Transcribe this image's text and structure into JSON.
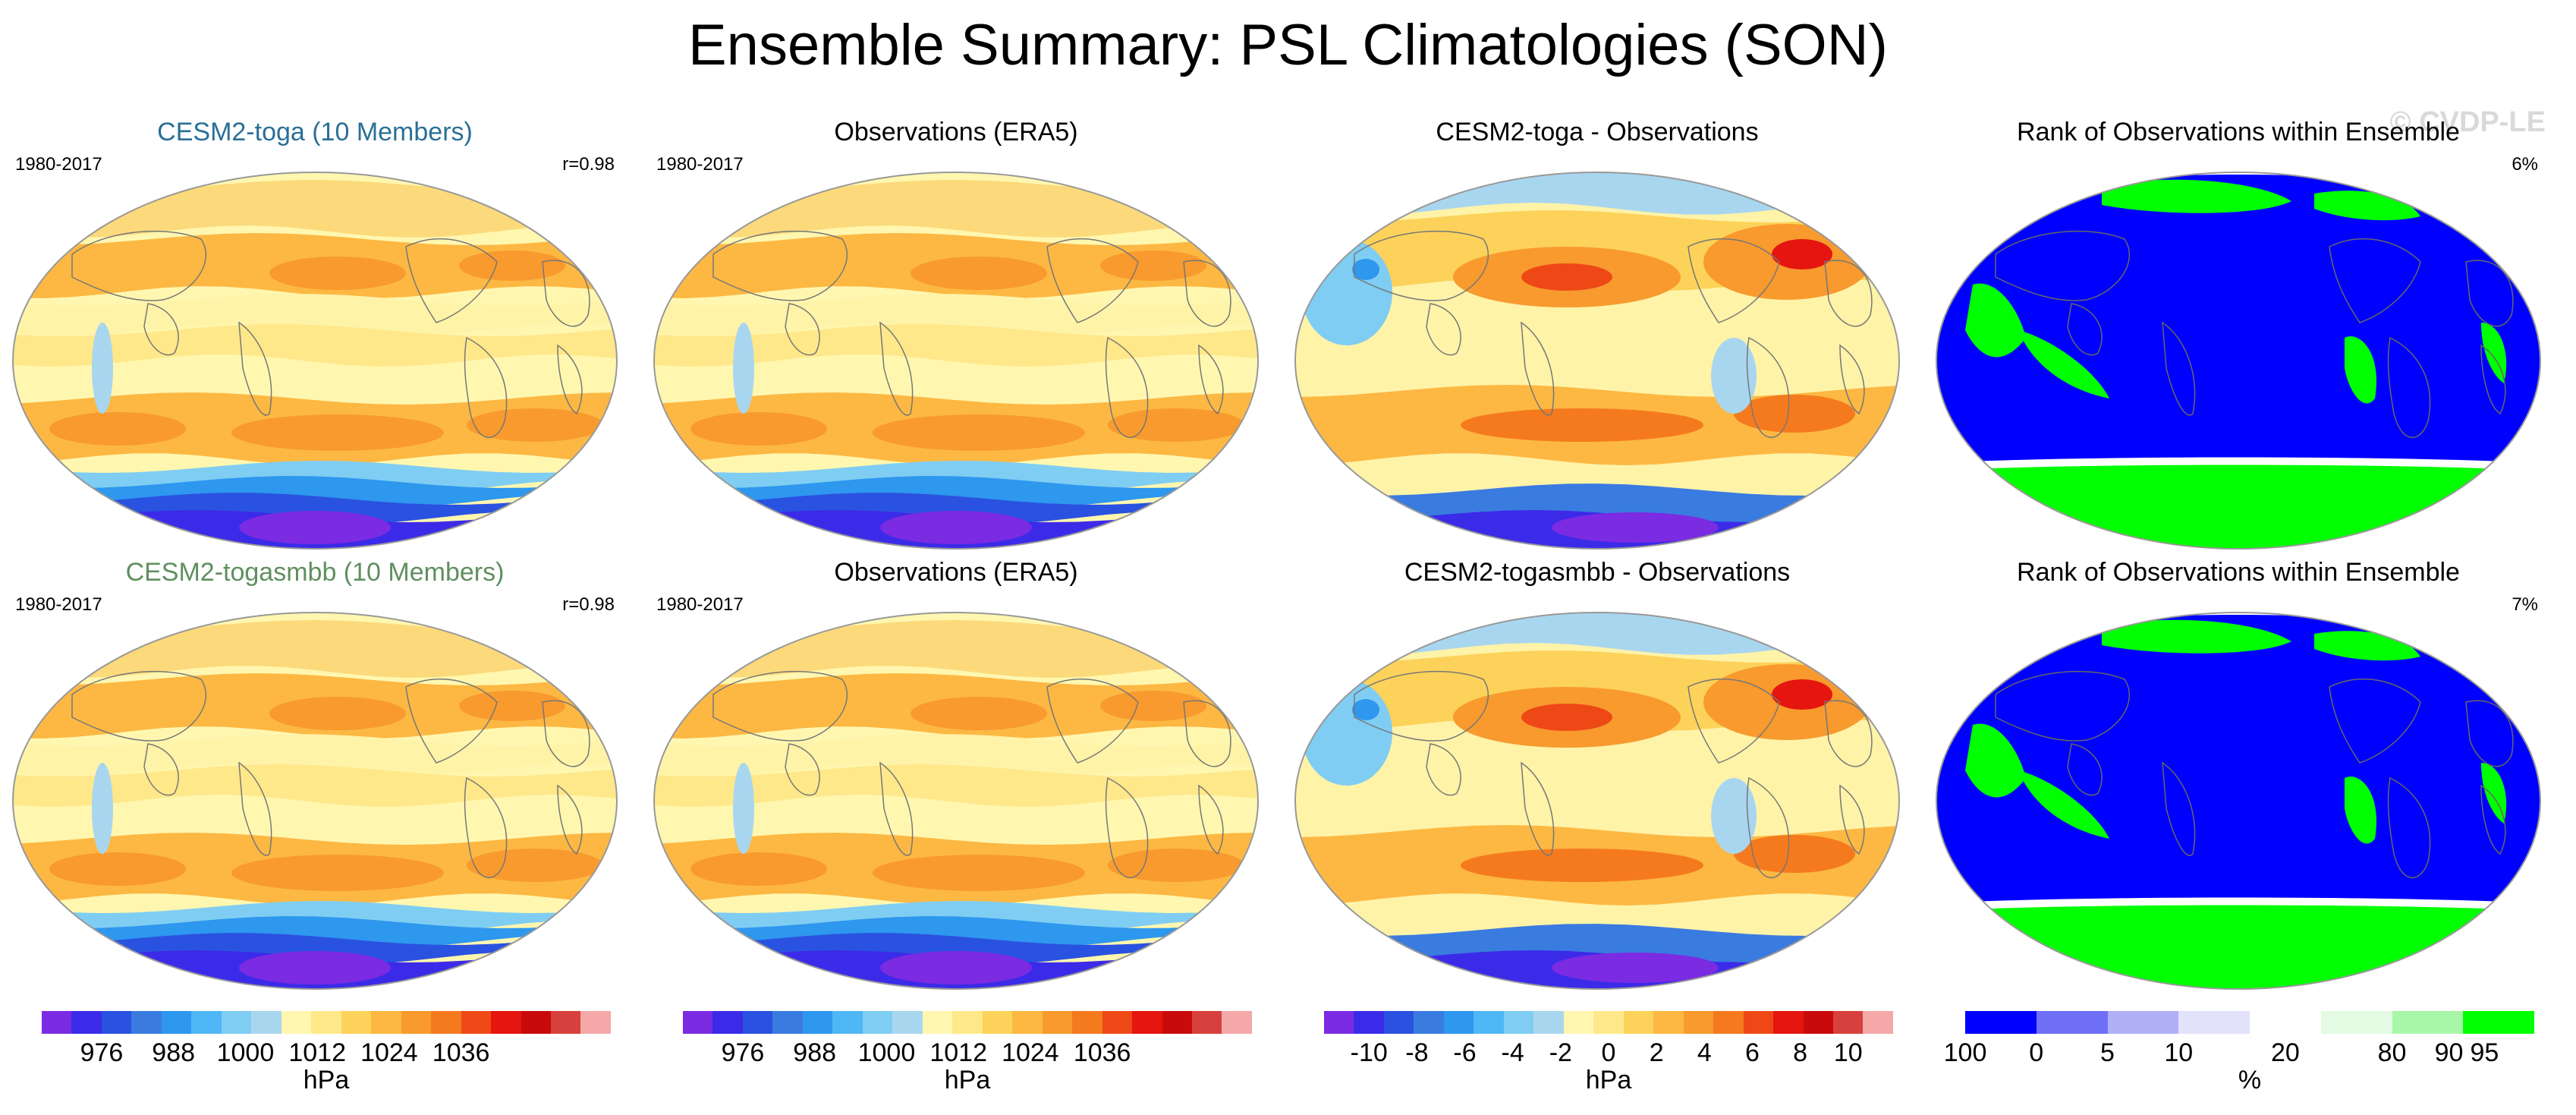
{
  "title": "Ensemble Summary: PSL Climatologies (SON)",
  "watermark": "© CVDP-LE",
  "panels": [
    {
      "title": "CESM2-toga (10 Members)",
      "title_color": "#2a6f97",
      "left": "1980-2017",
      "right": "r=0.98",
      "type": "psl",
      "style": "model1"
    },
    {
      "title": "Observations (ERA5)",
      "title_color": "#000000",
      "left": "1980-2017",
      "right": "",
      "type": "psl",
      "style": "obs1"
    },
    {
      "title": "CESM2-toga - Observations",
      "title_color": "#000000",
      "left": "",
      "right": "",
      "type": "diff",
      "style": "diff1"
    },
    {
      "title": "Rank of Observations within Ensemble",
      "title_color": "#000000",
      "left": "",
      "right": "6%",
      "type": "rank",
      "style": "rank1"
    },
    {
      "title": "CESM2-togasmbb (10 Members)",
      "title_color": "#5f8f5f",
      "left": "1980-2017",
      "right": "r=0.98",
      "type": "psl",
      "style": "model2"
    },
    {
      "title": "Observations (ERA5)",
      "title_color": "#000000",
      "left": "1980-2017",
      "right": "",
      "type": "psl",
      "style": "obs2"
    },
    {
      "title": "CESM2-togasmbb - Observations",
      "title_color": "#000000",
      "left": "",
      "right": "",
      "type": "diff",
      "style": "diff2"
    },
    {
      "title": "Rank of Observations within Ensemble",
      "title_color": "#000000",
      "left": "",
      "right": "7%",
      "type": "rank",
      "style": "rank2"
    }
  ],
  "chart_data": [
    {
      "type": "heatmap",
      "name": "psl-colorbar-1",
      "unit": "hPa",
      "tick_labels": [
        "976",
        "988",
        "1000",
        "1012",
        "1024",
        "1036"
      ],
      "colors": [
        "#7b2be2",
        "#3b2be8",
        "#2a52e0",
        "#3a7be0",
        "#2e97ee",
        "#4fb7f5",
        "#7fcdf2",
        "#a9d6ef",
        "#fff7b0",
        "#fee88a",
        "#fdd25a",
        "#fcb843",
        "#f89a2e",
        "#f57a1e",
        "#ee4816",
        "#e5150f",
        "#c80a0a",
        "#d8403e",
        "#f4a8a8"
      ]
    },
    {
      "type": "heatmap",
      "name": "psl-colorbar-2",
      "unit": "hPa",
      "tick_labels": [
        "976",
        "988",
        "1000",
        "1012",
        "1024",
        "1036"
      ],
      "colors": [
        "#7b2be2",
        "#3b2be8",
        "#2a52e0",
        "#3a7be0",
        "#2e97ee",
        "#4fb7f5",
        "#7fcdf2",
        "#a9d6ef",
        "#fff7b0",
        "#fee88a",
        "#fdd25a",
        "#fcb843",
        "#f89a2e",
        "#f57a1e",
        "#ee4816",
        "#e5150f",
        "#c80a0a",
        "#d8403e",
        "#f4a8a8"
      ]
    },
    {
      "type": "heatmap",
      "name": "diff-colorbar",
      "unit": "hPa",
      "tick_labels": [
        "-10",
        "-8",
        "-6",
        "-4",
        "-2",
        "0",
        "2",
        "4",
        "6",
        "8",
        "10"
      ],
      "colors": [
        "#7b2be2",
        "#3b2be8",
        "#2a52e0",
        "#3a7be0",
        "#2e97ee",
        "#4fb7f5",
        "#7fcdf2",
        "#a9d6ef",
        "#fff7b0",
        "#fee88a",
        "#fdd25a",
        "#fcb843",
        "#f89a2e",
        "#f57a1e",
        "#ee4816",
        "#e5150f",
        "#c80a0a",
        "#d8403e",
        "#f4a8a8"
      ]
    },
    {
      "type": "heatmap",
      "name": "rank-colorbar",
      "unit": "%",
      "tick_labels": [
        "0",
        "5",
        "10",
        "20",
        "80",
        "90",
        "95",
        "100"
      ],
      "colors": [
        "#0000ff",
        "#6f6ff7",
        "#b0b0f7",
        "#e2e2fb",
        "#ffffff",
        "#e2fbe2",
        "#a8f7a8",
        "#00ff00"
      ]
    }
  ]
}
